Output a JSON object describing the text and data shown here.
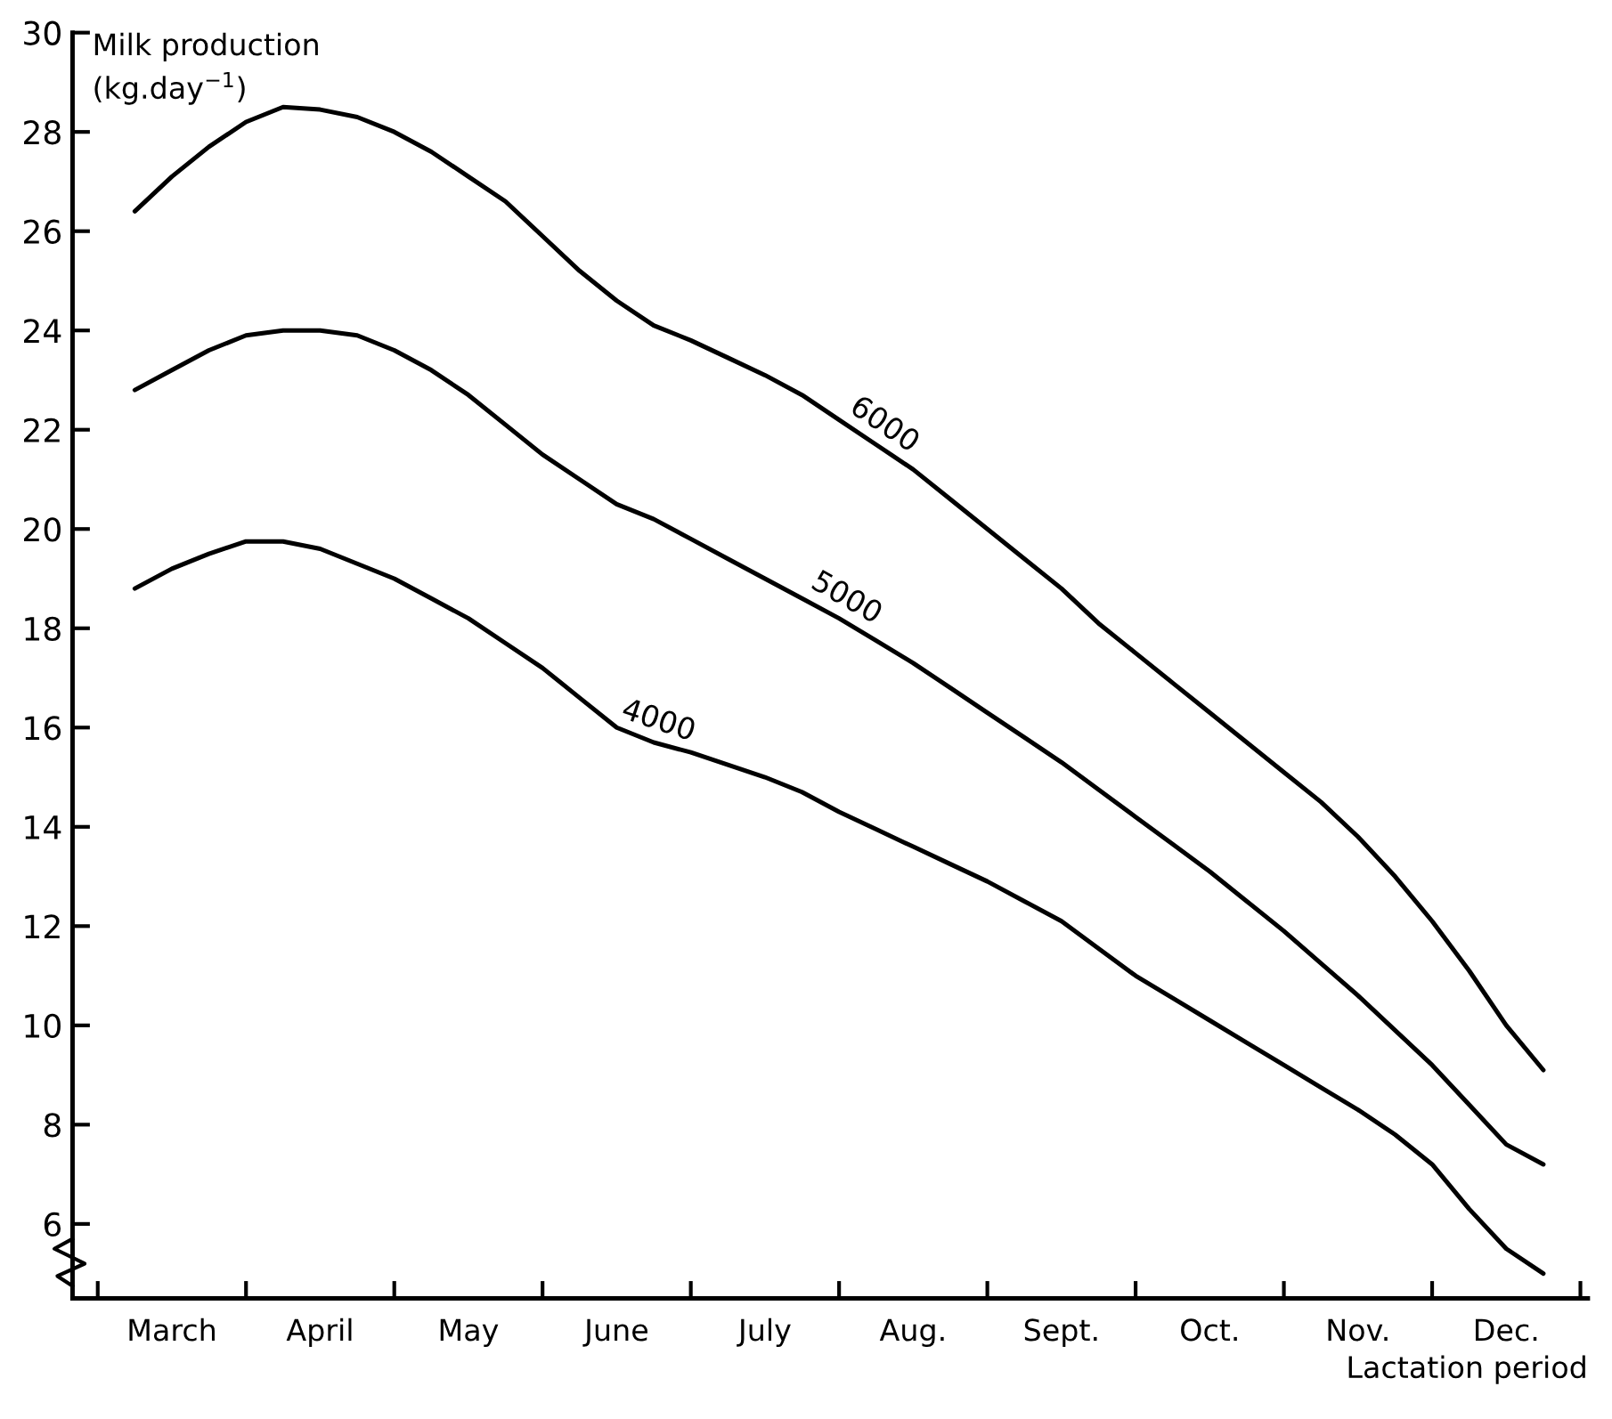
{
  "chart_data": {
    "type": "line",
    "ylabel": "Milk production\n(kg.day$^{−1}$)",
    "xlabel": "Lactation period",
    "categories": [
      null,
      "March",
      null,
      null,
      null,
      "April",
      null,
      null,
      null,
      "May",
      null,
      null,
      null,
      "June",
      null,
      null,
      null,
      "July",
      null,
      null,
      null,
      "Aug.",
      null,
      null,
      null,
      "Sept.",
      null,
      null,
      null,
      "Oct.",
      null,
      null,
      null,
      "Nov.",
      null,
      null,
      null,
      "Dec.",
      null
    ],
    "series": [
      {
        "name": "6000",
        "color": "#000000",
        "values": [
          26.4,
          27.1,
          27.7,
          28.2,
          28.5,
          28.45,
          28.3,
          28.0,
          27.6,
          27.1,
          26.6,
          25.9,
          25.2,
          24.6,
          24.1,
          23.8,
          23.45,
          23.1,
          22.7,
          22.2,
          21.7,
          21.2,
          20.6,
          20.0,
          19.4,
          18.8,
          18.1,
          17.5,
          16.9,
          16.3,
          15.7,
          15.1,
          14.5,
          13.8,
          13.0,
          12.1,
          11.1,
          10.0,
          9.1
        ]
      },
      {
        "name": "5000",
        "color": "#000000",
        "values": [
          22.8,
          23.2,
          23.6,
          23.9,
          24.0,
          24.0,
          23.9,
          23.6,
          23.2,
          22.7,
          22.1,
          21.5,
          21.0,
          20.5,
          20.2,
          19.8,
          19.4,
          19.0,
          18.6,
          18.2,
          17.75,
          17.3,
          16.8,
          16.3,
          15.8,
          15.3,
          14.75,
          14.2,
          13.65,
          13.1,
          12.5,
          11.9,
          11.25,
          10.6,
          9.9,
          9.2,
          8.4,
          7.6,
          7.2
        ]
      },
      {
        "name": "4000",
        "color": "#000000",
        "values": [
          18.8,
          19.2,
          19.5,
          19.75,
          19.75,
          19.6,
          19.3,
          19.0,
          18.6,
          18.2,
          17.7,
          17.2,
          16.6,
          16.0,
          15.7,
          15.5,
          15.25,
          15.0,
          14.7,
          14.3,
          13.95,
          13.6,
          13.25,
          12.9,
          12.5,
          12.1,
          11.55,
          11.0,
          10.55,
          10.1,
          9.65,
          9.2,
          8.75,
          8.3,
          7.8,
          7.2,
          6.3,
          5.5,
          5.0
        ]
      }
    ],
    "ylim": [
      4.5,
      30
    ],
    "yticks": [
      6,
      8,
      10,
      12,
      14,
      16,
      18,
      20,
      22,
      24,
      26,
      28,
      30
    ],
    "grid": false,
    "legend": false,
    "marker": "none",
    "line_style": "solid"
  }
}
